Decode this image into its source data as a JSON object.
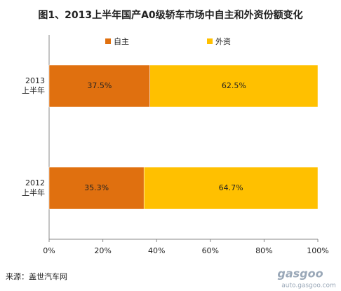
{
  "chart_data": {
    "type": "stacked-barh",
    "title": "图1、2013上半年国产A0级轿车市场中自主和外资份额变化",
    "categories": [
      "2013\n上半年",
      "2012\n上半年"
    ],
    "series": [
      {
        "name": "自主",
        "color": "#e0700f",
        "values": [
          37.5,
          35.3
        ],
        "value_labels": [
          "37.5%",
          "35.3%"
        ]
      },
      {
        "name": "外资",
        "color": "#ffc000",
        "values": [
          62.5,
          64.7
        ],
        "value_labels": [
          "62.5%",
          "64.7%"
        ]
      }
    ],
    "xlim": [
      0,
      100
    ],
    "xticks": [
      {
        "value": 0,
        "label": "0%"
      },
      {
        "value": 20,
        "label": "20%"
      },
      {
        "value": 40,
        "label": "40%"
      },
      {
        "value": 60,
        "label": "60%"
      },
      {
        "value": 80,
        "label": "80%"
      },
      {
        "value": 100,
        "label": "100%"
      }
    ],
    "legend": "top",
    "source": "来源：盖世汽车网",
    "watermark": [
      "gasgoo",
      "auto.gasgoo.com"
    ]
  }
}
